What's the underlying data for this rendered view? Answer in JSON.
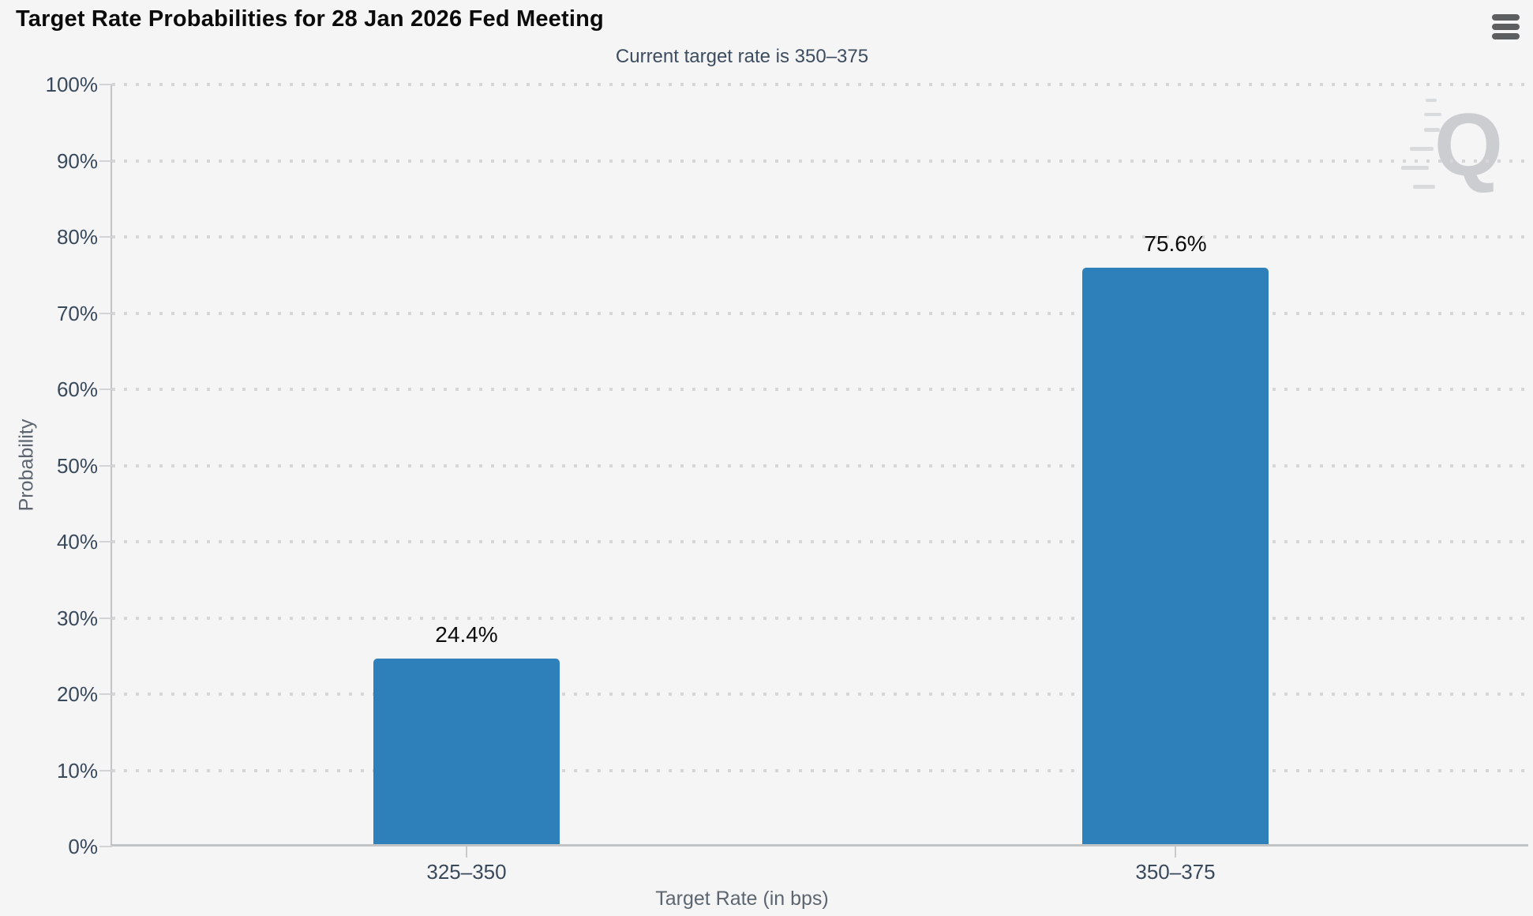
{
  "header": {
    "menu_icon": "hamburger-icon"
  },
  "watermark": {
    "letter": "Q"
  },
  "colors": {
    "background": "#f5f5f6",
    "bar": "#2d80b9",
    "tick_label": "#39495c",
    "axis_title": "#5d6670",
    "grid_dot": "#d6d6d8"
  },
  "chart_data": {
    "type": "bar",
    "title": "Target Rate Probabilities for 28 Jan 2026 Fed Meeting",
    "subtitle": "Current target rate is 350–375",
    "categories": [
      "325–350",
      "350–375"
    ],
    "values": [
      24.4,
      75.6
    ],
    "value_labels": [
      "24.4%",
      "75.6%"
    ],
    "xlabel": "Target Rate (in bps)",
    "ylabel": "Probability",
    "ylim": [
      0,
      100
    ],
    "y_ticks": [
      "0%",
      "10%",
      "20%",
      "30%",
      "40%",
      "50%",
      "60%",
      "70%",
      "80%",
      "90%",
      "100%"
    ],
    "grid": "dotted-horizontal",
    "legend": "none"
  }
}
